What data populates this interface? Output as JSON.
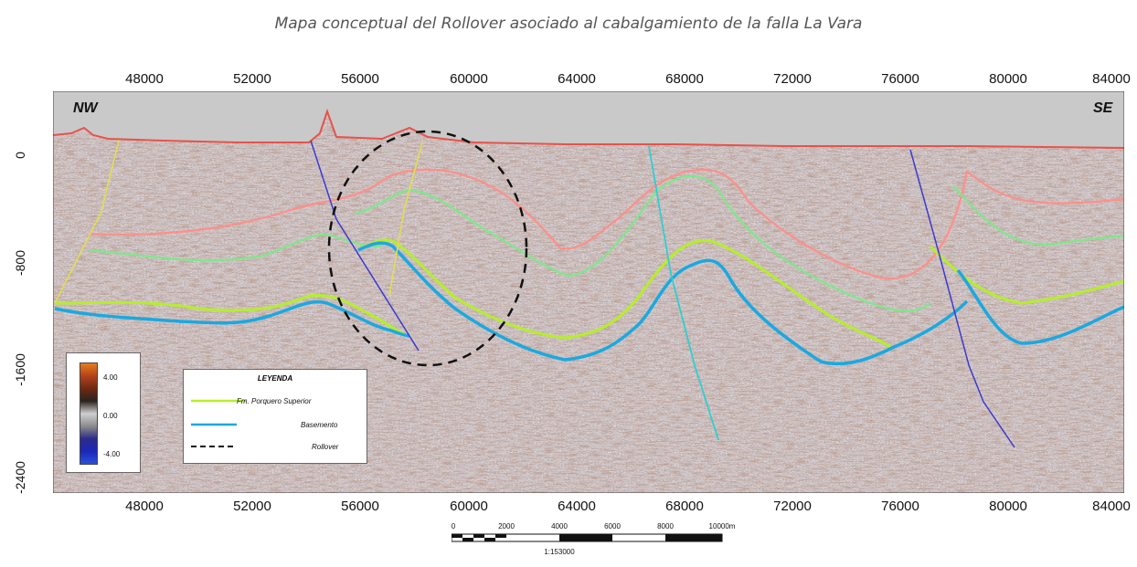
{
  "title": "Mapa conceptual del Rollover asociado al cabalgamiento de la  falla La Vara",
  "x_axis": {
    "top_ticks": [
      "48000",
      "52000",
      "56000",
      "60000",
      "64000",
      "68000",
      "72000",
      "76000",
      "80000",
      "84000"
    ],
    "bottom_ticks": [
      "48000",
      "52000",
      "56000",
      "60000",
      "64000",
      "68000",
      "72000",
      "76000",
      "80000",
      "84000"
    ]
  },
  "y_axis": {
    "ticks": [
      "0",
      "-800",
      "-1600",
      "-2400"
    ]
  },
  "orientation": {
    "left": "NW",
    "right": "SE"
  },
  "colorbar": {
    "labels": [
      "4.00",
      "0.00",
      "-4.00"
    ]
  },
  "legend": {
    "title": "LEYENDA",
    "items": [
      {
        "label": "Fm. Porquero Superior",
        "color": "#b5ef28",
        "style": "solid"
      },
      {
        "label": "Basemento",
        "color": "#1aa9e0",
        "style": "solid"
      },
      {
        "label": "Rollover",
        "color": "#111111",
        "style": "dashed"
      }
    ]
  },
  "scale_bar": {
    "labels": [
      "0",
      "2000",
      "4000",
      "6000",
      "8000",
      "10000m"
    ],
    "ratio": "1:153000"
  },
  "horizon_colors": {
    "surface": "#e8524a",
    "pink": "#ff8f8a",
    "green": "#7de88a",
    "lime": "#b5ef28",
    "basement": "#1aa9e0"
  },
  "fault_colors": {
    "yellow": "#e3e04a",
    "blue": "#3c3ad0",
    "cyan": "#2ecfd0"
  }
}
